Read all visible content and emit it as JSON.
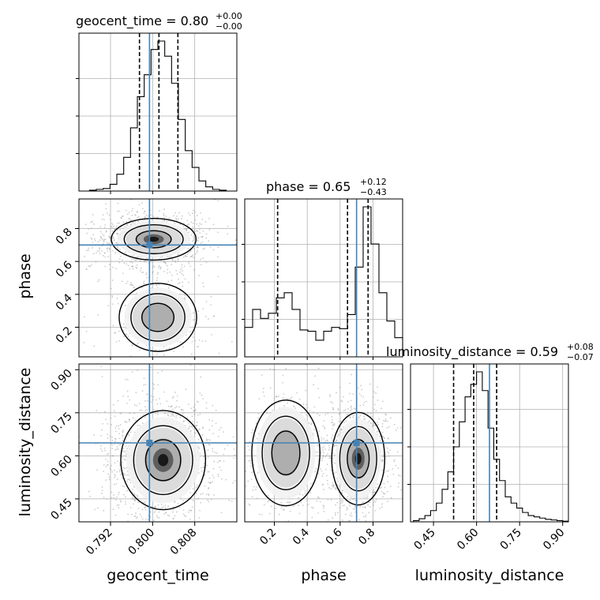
{
  "chart_data": {
    "type": "corner",
    "parameters": [
      "geocent_time",
      "phase",
      "luminosity_distance"
    ],
    "axis_labels": [
      "geocent_time",
      "phase",
      "luminosity_distance"
    ],
    "ranges": {
      "geocent_time": [
        0.786,
        0.816
      ],
      "phase": [
        0.02,
        0.98
      ],
      "luminosity_distance": [
        0.37,
        0.92
      ]
    },
    "ticks": {
      "geocent_time": [
        "0.792",
        "0.800",
        "0.808"
      ],
      "phase": [
        "0.2",
        "0.4",
        "0.6",
        "0.8"
      ],
      "luminosity_distance": [
        "0.45",
        "0.60",
        "0.75",
        "0.90"
      ]
    },
    "truths": {
      "geocent_time": 0.7994,
      "phase": 0.7,
      "luminosity_distance": 0.645
    },
    "truth_color": "#4682b4",
    "titles": {
      "geocent_time": {
        "prefix": "geocent_time = ",
        "median": "0.80",
        "plus": "+0.00",
        "minus": "−0.00"
      },
      "phase": {
        "prefix": "phase = ",
        "median": "0.65",
        "plus": "+0.12",
        "minus": "−0.43"
      },
      "luminosity_distance": {
        "prefix": "luminosity_distance = ",
        "median": "0.59",
        "plus": "+0.08",
        "minus": "−0.07"
      }
    },
    "quantiles": {
      "geocent_time": [
        0.7975,
        0.8012,
        0.8048
      ],
      "phase": [
        0.22,
        0.645,
        0.77
      ],
      "luminosity_distance": [
        0.52,
        0.59,
        0.67
      ]
    },
    "histograms": {
      "geocent_time": {
        "bin_edges": [
          0.788,
          0.7893,
          0.7906,
          0.7919,
          0.7932,
          0.7945,
          0.7958,
          0.7971,
          0.7984,
          0.7997,
          0.801,
          0.8023,
          0.8036,
          0.8049,
          0.8062,
          0.8075,
          0.8088,
          0.8101,
          0.8114,
          0.8127,
          0.814
        ],
        "counts": [
          1,
          2,
          3,
          8,
          20,
          40,
          75,
          112,
          138,
          168,
          178,
          160,
          128,
          85,
          48,
          28,
          12,
          5,
          2,
          1
        ]
      },
      "phase": {
        "bin_edges": [
          0.02,
          0.068,
          0.116,
          0.164,
          0.212,
          0.26,
          0.308,
          0.356,
          0.404,
          0.452,
          0.5,
          0.548,
          0.596,
          0.644,
          0.692,
          0.74,
          0.788,
          0.836,
          0.884,
          0.932,
          0.98
        ],
        "counts": [
          46,
          74,
          60,
          68,
          92,
          100,
          74,
          42,
          40,
          26,
          40,
          46,
          44,
          66,
          140,
          234,
          176,
          100,
          56,
          30
        ]
      },
      "luminosity_distance": {
        "bin_edges": [
          0.38,
          0.4,
          0.42,
          0.44,
          0.46,
          0.48,
          0.5,
          0.52,
          0.54,
          0.56,
          0.58,
          0.6,
          0.62,
          0.64,
          0.66,
          0.68,
          0.7,
          0.72,
          0.74,
          0.76,
          0.78,
          0.8,
          0.82,
          0.84,
          0.86,
          0.88,
          0.9,
          0.92
        ],
        "counts": [
          2,
          5,
          10,
          18,
          30,
          52,
          80,
          120,
          160,
          200,
          220,
          240,
          210,
          150,
          100,
          66,
          40,
          30,
          22,
          15,
          10,
          8,
          6,
          4,
          3,
          2,
          1
        ]
      }
    },
    "joint_2d": [
      {
        "x": "geocent_time",
        "y": "phase",
        "modes": [
          {
            "center": [
              0.8002,
              0.735
            ],
            "spread": [
              0.0035,
              0.055
            ],
            "weight": 0.72
          },
          {
            "center": [
              0.801,
              0.26
            ],
            "spread": [
              0.0032,
              0.09
            ],
            "weight": 0.28
          }
        ]
      },
      {
        "x": "geocent_time",
        "y": "luminosity_distance",
        "modes": [
          {
            "center": [
              0.802,
              0.585
            ],
            "spread": [
              0.0035,
              0.075
            ],
            "weight": 1.0
          }
        ]
      },
      {
        "x": "phase",
        "y": "luminosity_distance",
        "modes": [
          {
            "center": [
              0.71,
              0.59
            ],
            "spread": [
              0.07,
              0.07
            ],
            "weight": 0.65
          },
          {
            "center": [
              0.27,
              0.61
            ],
            "spread": [
              0.09,
              0.08
            ],
            "weight": 0.35
          }
        ]
      }
    ]
  }
}
